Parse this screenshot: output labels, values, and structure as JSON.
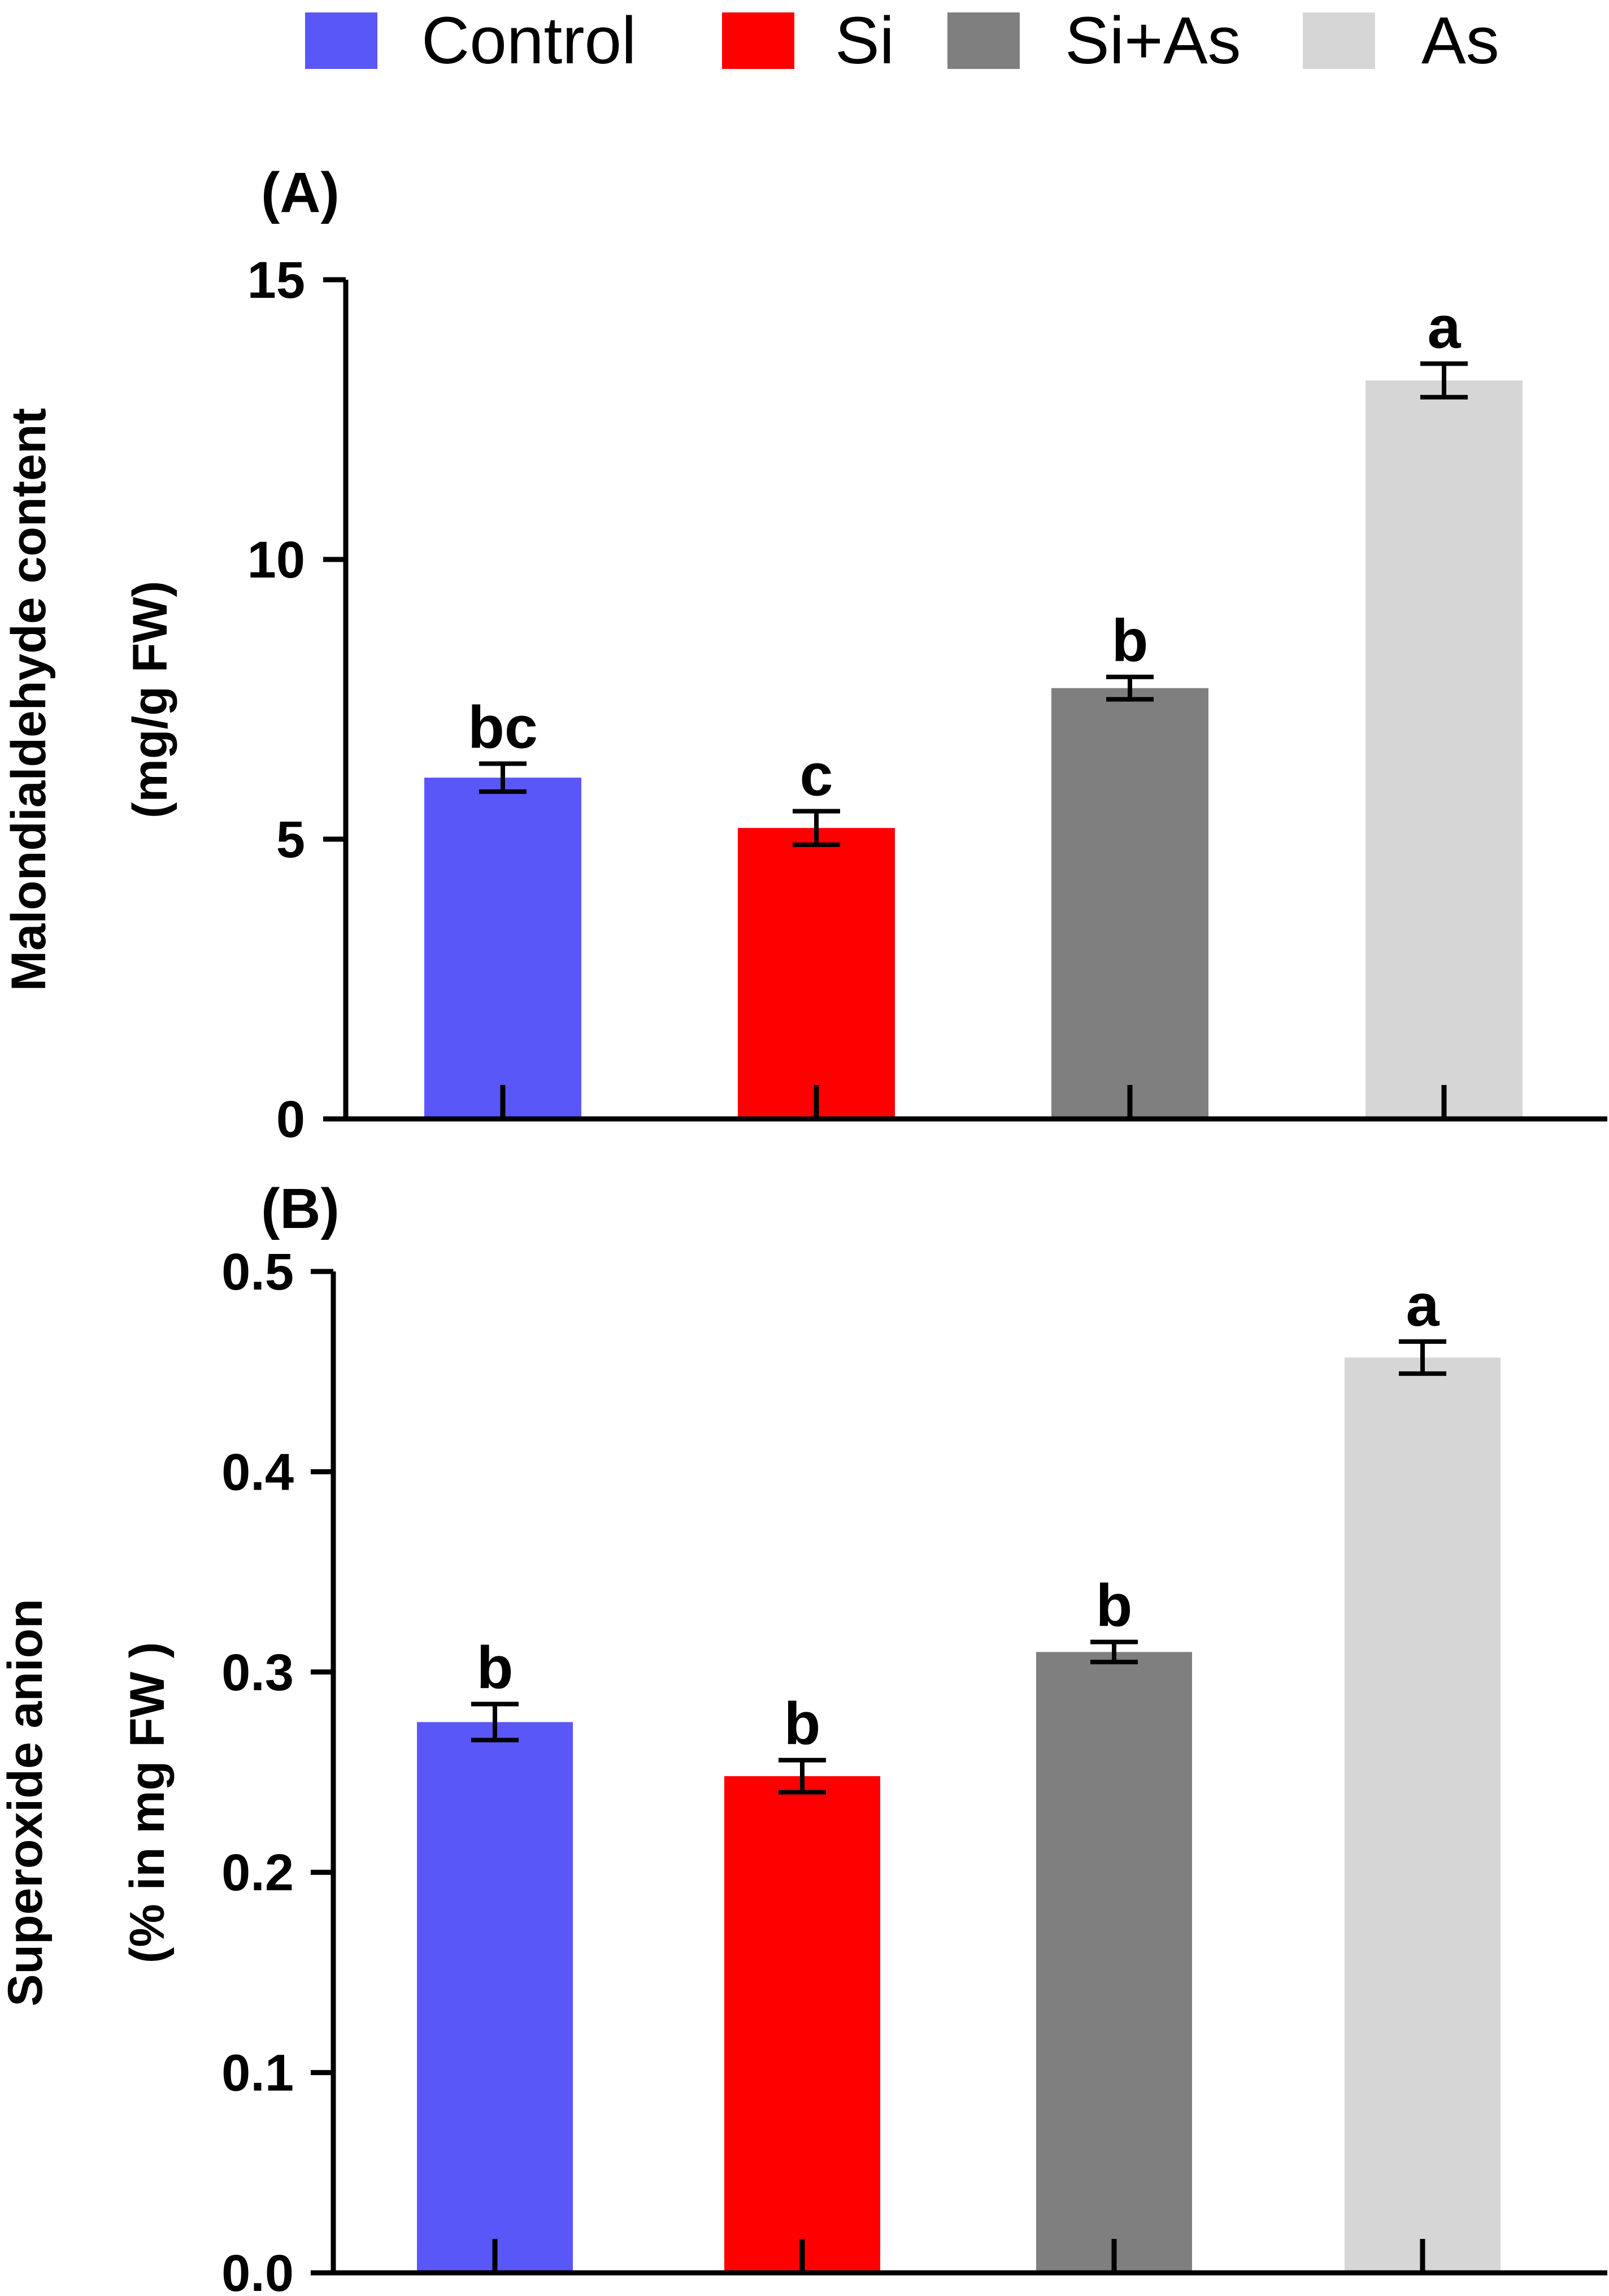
{
  "legend": [
    {
      "label": "Control",
      "color": "#5a57f9"
    },
    {
      "label": "Si",
      "color": "#ff0000"
    },
    {
      "label": "Si+As",
      "color": "#7f7f7f"
    },
    {
      "label": "As",
      "color": "#d6d6d6"
    }
  ],
  "chart_data": [
    {
      "type": "bar",
      "panel_label": "(A)",
      "categories": [
        "Control",
        "Si",
        "Si+As",
        "As"
      ],
      "values": [
        6.1,
        5.2,
        7.7,
        13.2
      ],
      "errors": [
        0.25,
        0.3,
        0.2,
        0.3
      ],
      "significance": [
        "bc",
        "c",
        "b",
        "a"
      ],
      "colors": [
        "#5a57f9",
        "#ff0000",
        "#7f7f7f",
        "#d6d6d6"
      ],
      "ylabel": [
        "Malondialdehyde content",
        "(mg/g FW)"
      ],
      "ylim": [
        0,
        15
      ],
      "yticks": [
        "0",
        "5",
        "10",
        "15"
      ],
      "ytick_values": [
        0,
        5,
        10,
        15
      ],
      "grid": false,
      "legend_position": "top"
    },
    {
      "type": "bar",
      "panel_label": "(B)",
      "categories": [
        "Control",
        "Si",
        "Si+As",
        "As"
      ],
      "values": [
        0.275,
        0.248,
        0.31,
        0.457
      ],
      "errors": [
        0.009,
        0.008,
        0.005,
        0.008
      ],
      "significance": [
        "b",
        "b",
        "b",
        "a"
      ],
      "colors": [
        "#5a57f9",
        "#ff0000",
        "#7f7f7f",
        "#d6d6d6"
      ],
      "ylabel": [
        "Superoxide anion",
        "(% in mg FW )"
      ],
      "ylim": [
        0,
        0.5
      ],
      "yticks": [
        "0.0",
        "0.1",
        "0.2",
        "0.3",
        "0.4",
        "0.5"
      ],
      "ytick_values": [
        0,
        0.1,
        0.2,
        0.3,
        0.4,
        0.5
      ],
      "grid": false,
      "legend_position": "top"
    }
  ]
}
